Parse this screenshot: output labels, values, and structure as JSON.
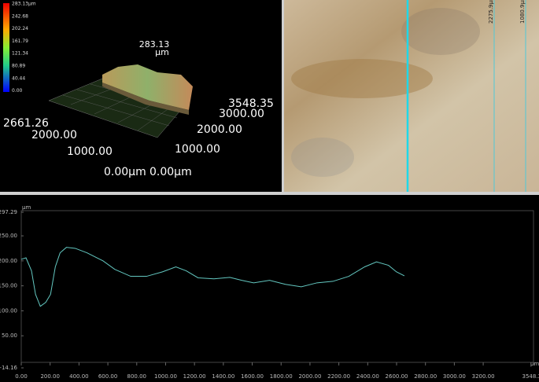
{
  "color_scale": {
    "labels": [
      "283.13μm",
      "242.68",
      "202.24",
      "161.79",
      "121.34",
      "80.89",
      "40.44",
      "0.00"
    ]
  },
  "view_3d": {
    "z_max": "283.13",
    "z_unit": "μm",
    "y_max": "3548.35",
    "y_ticks": [
      "3000.00",
      "2000.00",
      "1000.00",
      "0.00μm"
    ],
    "x_max": "2661.26",
    "x_ticks": [
      "2000.00",
      "1000.00",
      "0.00μm"
    ]
  },
  "photo_view": {
    "markers": [
      "2275.9μm",
      "1080.9μm"
    ]
  },
  "chart_data": {
    "type": "line",
    "x_unit": "μm",
    "y_unit": "μm",
    "x": [
      0,
      33,
      71,
      99,
      132,
      170,
      203,
      236,
      269,
      313,
      374,
      456,
      566,
      648,
      758,
      868,
      978,
      1071,
      1143,
      1225,
      1335,
      1445,
      1527,
      1610,
      1720,
      1830,
      1940,
      2049,
      2159,
      2269,
      2379,
      2461,
      2544,
      2599,
      2654
    ],
    "series": [
      {
        "color": "#63c7c0",
        "values": [
          203,
          206,
          180,
          133,
          109,
          117,
          133,
          188,
          216,
          227,
          225,
          216,
          200,
          183,
          169,
          169,
          178,
          188,
          180,
          166,
          164,
          167,
          161,
          156,
          161,
          153,
          148,
          156,
          159,
          169,
          188,
          198,
          191,
          178,
          170
        ]
      }
    ],
    "xlim": [
      0,
      3548.35
    ],
    "xticks": [
      {
        "value": 0,
        "label": "0.00"
      },
      {
        "value": 200,
        "label": "200.00"
      },
      {
        "value": 400,
        "label": "400.00"
      },
      {
        "value": 600,
        "label": "600.00"
      },
      {
        "value": 800,
        "label": "800.00"
      },
      {
        "value": 1000,
        "label": "1000.00"
      },
      {
        "value": 1200,
        "label": "1200.00"
      },
      {
        "value": 1400,
        "label": "1400.00"
      },
      {
        "value": 1600,
        "label": "1600.00"
      },
      {
        "value": 1800,
        "label": "1800.00"
      },
      {
        "value": 2000,
        "label": "2000.00"
      },
      {
        "value": 2200,
        "label": "2200.00"
      },
      {
        "value": 2400,
        "label": "2400.00"
      },
      {
        "value": 2600,
        "label": "2600.00"
      },
      {
        "value": 2800,
        "label": "2800.00"
      },
      {
        "value": 3000,
        "label": "3000.00"
      },
      {
        "value": 3200,
        "label": "3200.00"
      },
      3548.35
    ],
    "ylim": [
      -14.16,
      297.29
    ],
    "yticks": [
      -14.16,
      {
        "value": 50,
        "label": "50.00"
      },
      {
        "value": 100,
        "label": "100.00"
      },
      {
        "value": 150,
        "label": "150.00"
      },
      {
        "value": 200,
        "label": "200.00"
      },
      {
        "value": 250,
        "label": "250.00"
      },
      297.29
    ]
  }
}
